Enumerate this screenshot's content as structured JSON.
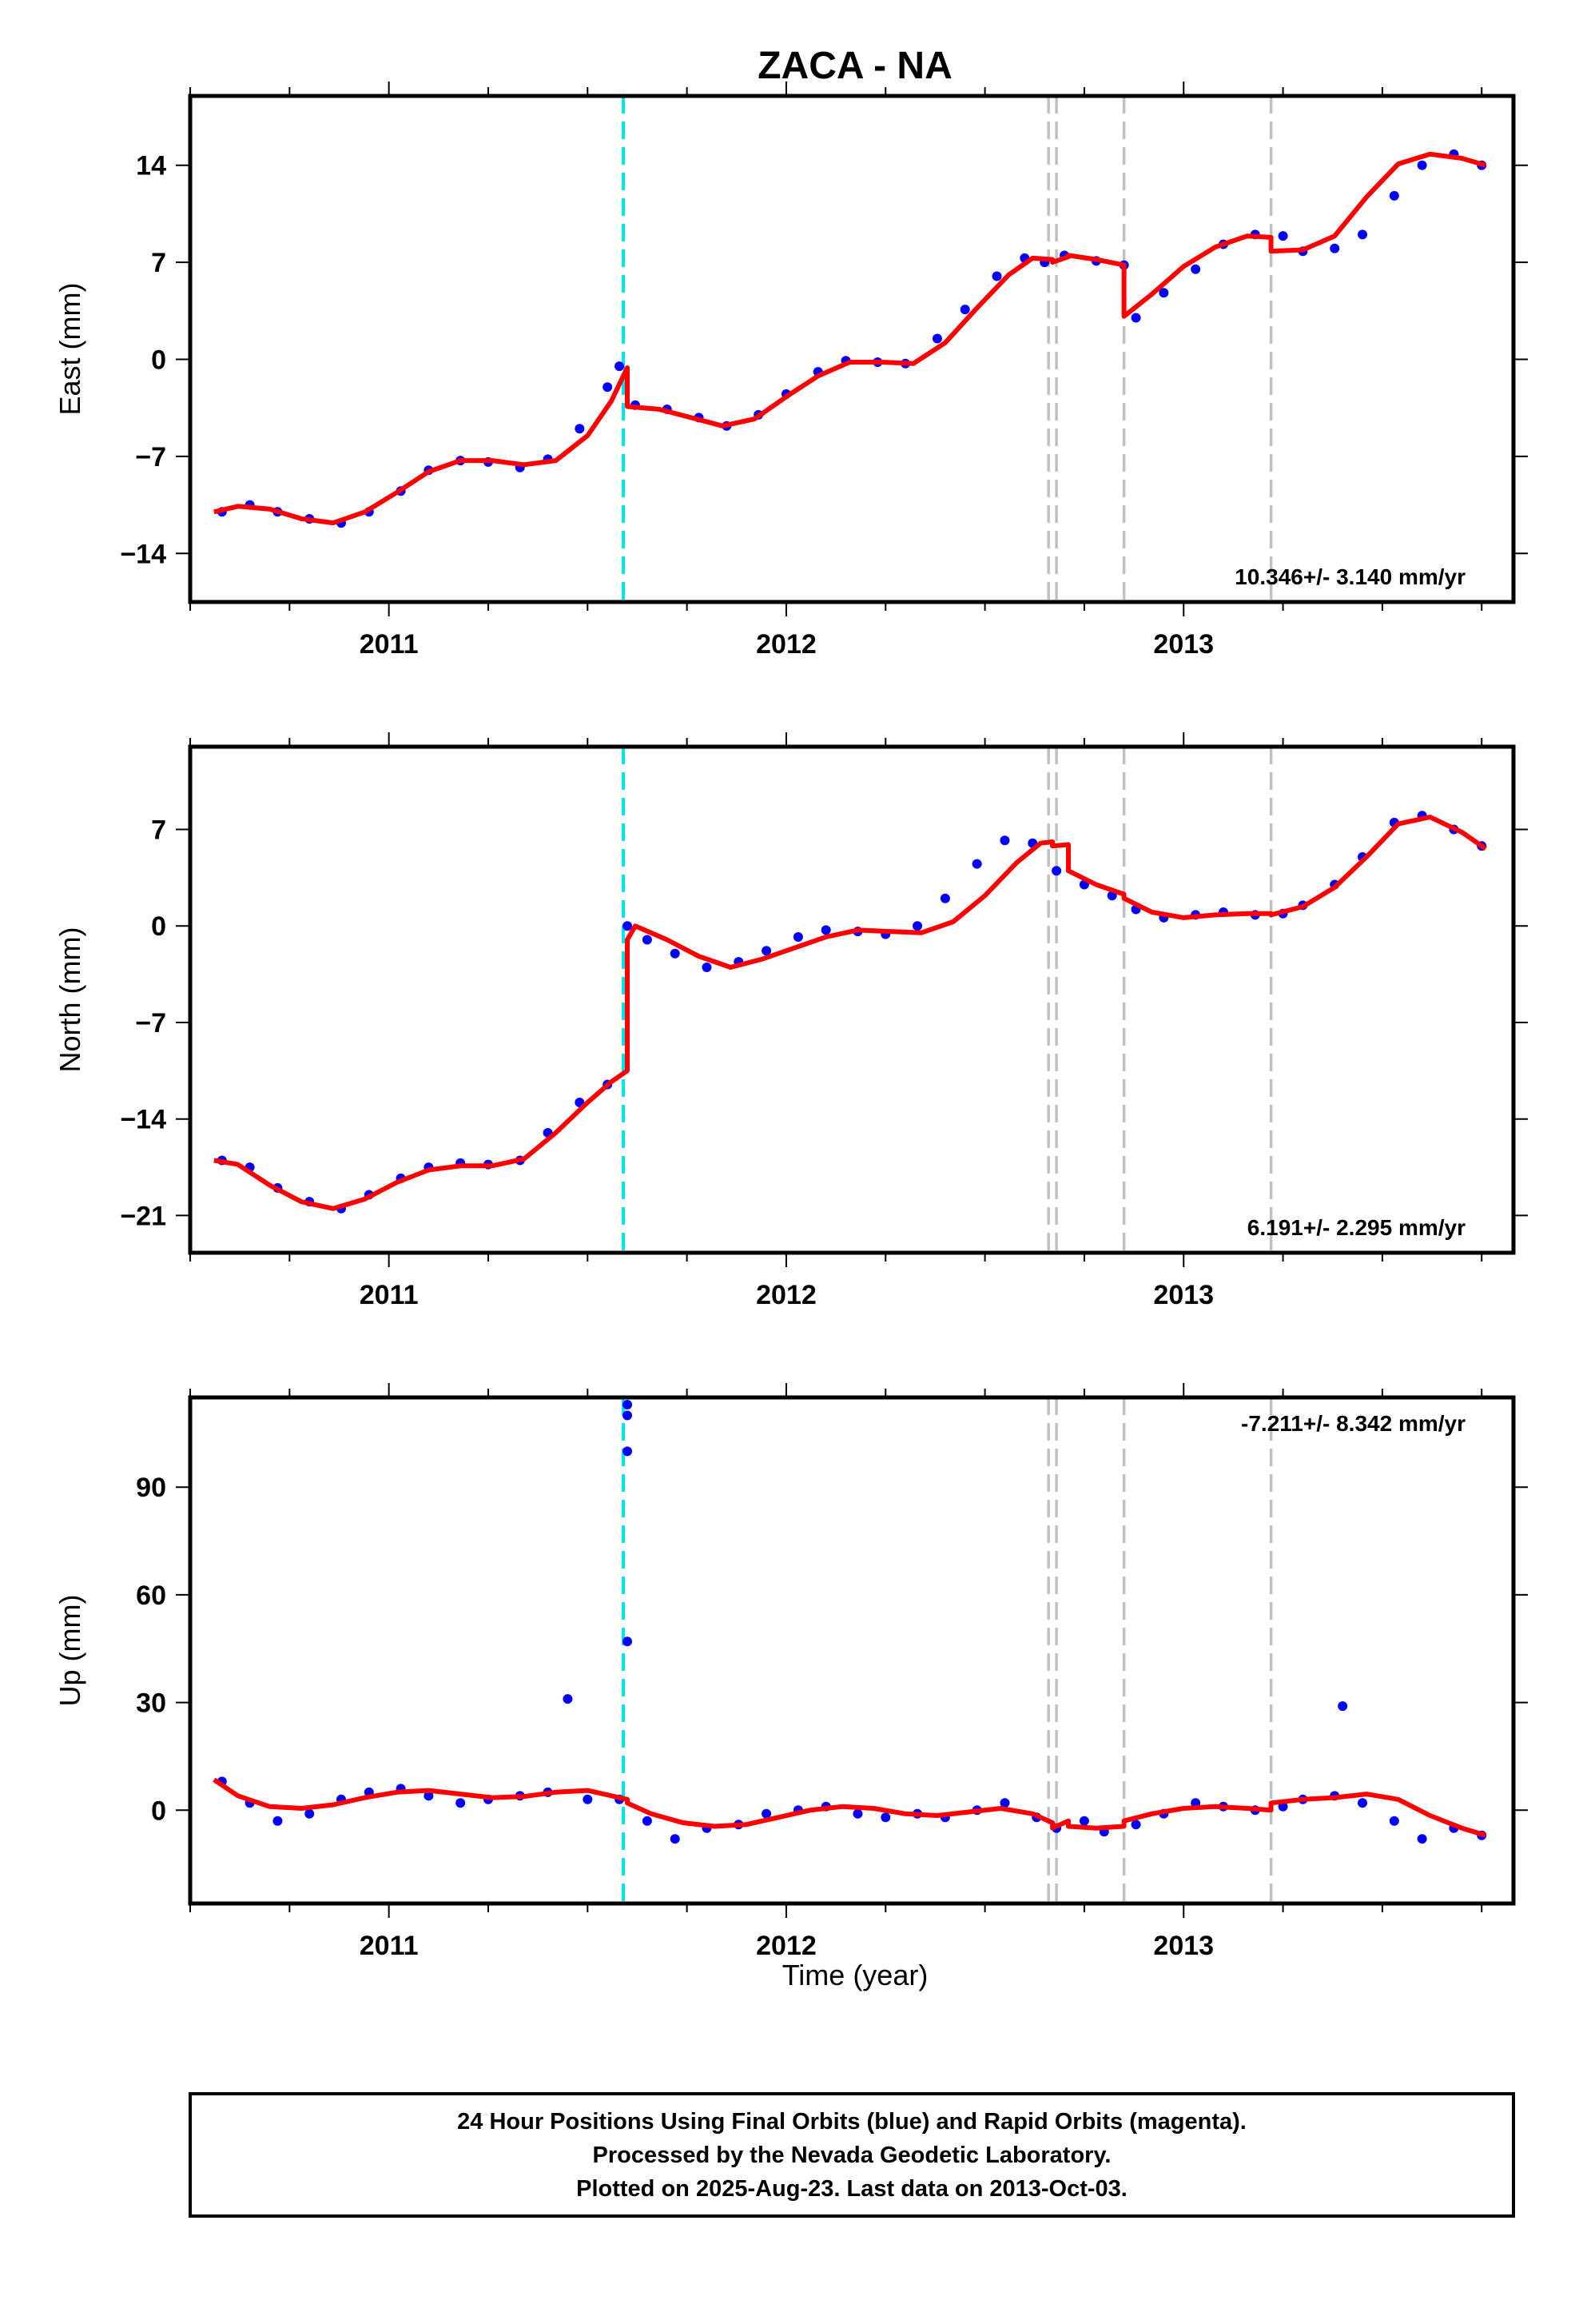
{
  "title": "ZACA - NA",
  "x_axis_label": "Time (year)",
  "footer": {
    "line1": "24 Hour Positions Using Final Orbits (blue) and Rapid Orbits (magenta).",
    "line2": "Processed by the Nevada Geodetic Laboratory.",
    "line3": "Plotted on 2025-Aug-23. Last data on 2013-Oct-03."
  },
  "colors": {
    "data_points": "#0000ff",
    "model_fit": "#ff0000",
    "equipment_change": "#00e5ee",
    "event": "#c0c0c0",
    "frame": "#000000"
  },
  "chart_data": [
    {
      "type": "scatter",
      "ylabel": "East (mm)",
      "xlim": [
        2010.5,
        2013.83
      ],
      "ylim": [
        -17.5,
        19
      ],
      "x_ticks": [
        2011,
        2012,
        2013
      ],
      "y_ticks": [
        -14,
        -7,
        0,
        7,
        14
      ],
      "velocity": "10.346+/- 3.140 mm/yr",
      "series": [
        {
          "kind": "points",
          "x": [
            2010.58,
            2010.65,
            2010.72,
            2010.8,
            2010.88,
            2010.95,
            2011.03,
            2011.1,
            2011.18,
            2011.25,
            2011.33,
            2011.4,
            2011.48,
            2011.55,
            2011.58,
            2011.62,
            2011.7,
            2011.78,
            2011.85,
            2011.93,
            2012.0,
            2012.08,
            2012.15,
            2012.23,
            2012.3,
            2012.38,
            2012.45,
            2012.53,
            2012.6,
            2012.65,
            2012.7,
            2012.78,
            2012.85,
            2012.88,
            2012.95,
            2013.03,
            2013.1,
            2013.18,
            2013.25,
            2013.3,
            2013.38,
            2013.45,
            2013.53,
            2013.6,
            2013.68,
            2013.75
          ],
          "y": [
            -11.0,
            -10.5,
            -11.0,
            -11.5,
            -11.8,
            -11.0,
            -9.5,
            -8.0,
            -7.3,
            -7.4,
            -7.8,
            -7.2,
            -5.0,
            -2.0,
            -0.5,
            -3.3,
            -3.6,
            -4.2,
            -4.8,
            -4.0,
            -2.5,
            -0.9,
            -0.1,
            -0.2,
            -0.3,
            1.5,
            3.6,
            6.0,
            7.3,
            7.0,
            7.5,
            7.1,
            6.8,
            3.0,
            4.8,
            6.5,
            8.3,
            9.0,
            8.9,
            7.8,
            8.0,
            9.0,
            11.8,
            14.0,
            14.8,
            14.0
          ]
        },
        {
          "kind": "model",
          "x": [
            2010.56,
            2010.62,
            2010.7,
            2010.78,
            2010.86,
            2010.94,
            2011.02,
            2011.1,
            2011.18,
            2011.26,
            2011.34,
            2011.42,
            2011.5,
            2011.56,
            2011.6,
            2011.6,
            2011.68,
            2011.76,
            2011.84,
            2011.92,
            2012.0,
            2012.08,
            2012.16,
            2012.24,
            2012.32,
            2012.4,
            2012.48,
            2012.56,
            2012.62,
            2012.67,
            2012.67,
            2012.71,
            2012.71,
            2012.78,
            2012.85,
            2012.85,
            2012.92,
            2013.0,
            2013.08,
            2013.16,
            2013.22,
            2013.22,
            2013.3,
            2013.38,
            2013.46,
            2013.54,
            2013.62,
            2013.7,
            2013.76
          ],
          "y": [
            -11.0,
            -10.6,
            -10.8,
            -11.5,
            -11.8,
            -11.0,
            -9.6,
            -8.1,
            -7.3,
            -7.3,
            -7.6,
            -7.3,
            -5.5,
            -3.0,
            -0.6,
            -3.4,
            -3.6,
            -4.2,
            -4.8,
            -4.3,
            -2.7,
            -1.2,
            -0.2,
            -0.2,
            -0.3,
            1.2,
            3.7,
            6.1,
            7.3,
            7.2,
            7.0,
            7.4,
            7.5,
            7.2,
            6.8,
            3.1,
            4.7,
            6.7,
            8.1,
            8.9,
            8.8,
            7.8,
            7.9,
            8.9,
            11.7,
            14.1,
            14.8,
            14.5,
            14.0
          ]
        }
      ]
    },
    {
      "type": "scatter",
      "ylabel": "North (mm)",
      "xlim": [
        2010.5,
        2013.83
      ],
      "ylim": [
        -23.7,
        13
      ],
      "x_ticks": [
        2011,
        2012,
        2013
      ],
      "y_ticks": [
        -21,
        -14,
        -7,
        0,
        7
      ],
      "velocity": "6.191+/- 2.295 mm/yr",
      "series": [
        {
          "kind": "points",
          "x": [
            2010.58,
            2010.65,
            2010.72,
            2010.8,
            2010.88,
            2010.95,
            2011.03,
            2011.1,
            2011.18,
            2011.25,
            2011.33,
            2011.4,
            2011.48,
            2011.55,
            2011.6,
            2011.65,
            2011.72,
            2011.8,
            2011.88,
            2011.95,
            2012.03,
            2012.1,
            2012.18,
            2012.25,
            2012.33,
            2012.4,
            2012.48,
            2012.55,
            2012.62,
            2012.68,
            2012.75,
            2012.82,
            2012.88,
            2012.95,
            2013.03,
            2013.1,
            2013.18,
            2013.25,
            2013.3,
            2013.38,
            2013.45,
            2013.53,
            2013.6,
            2013.68,
            2013.75
          ],
          "y": [
            -17.0,
            -17.5,
            -19.0,
            -20.0,
            -20.5,
            -19.5,
            -18.3,
            -17.5,
            -17.2,
            -17.3,
            -17.0,
            -15.0,
            -12.8,
            -11.5,
            0.0,
            -1.0,
            -2.0,
            -3.0,
            -2.6,
            -1.8,
            -0.8,
            -0.3,
            -0.4,
            -0.6,
            0.0,
            2.0,
            4.5,
            6.2,
            6.0,
            4.0,
            3.0,
            2.2,
            1.2,
            0.6,
            0.8,
            1.0,
            0.8,
            0.9,
            1.5,
            3.0,
            5.0,
            7.5,
            8.0,
            7.0,
            5.8
          ]
        },
        {
          "kind": "model",
          "x": [
            2010.56,
            2010.62,
            2010.7,
            2010.78,
            2010.86,
            2010.94,
            2011.02,
            2011.1,
            2011.18,
            2011.26,
            2011.34,
            2011.42,
            2011.5,
            2011.56,
            2011.6,
            2011.6,
            2011.62,
            2011.7,
            2011.78,
            2011.86,
            2011.94,
            2012.02,
            2012.1,
            2012.18,
            2012.26,
            2012.34,
            2012.42,
            2012.5,
            2012.58,
            2012.64,
            2012.67,
            2012.67,
            2012.71,
            2012.71,
            2012.78,
            2012.85,
            2012.85,
            2012.92,
            2013.0,
            2013.08,
            2013.16,
            2013.22,
            2013.22,
            2013.3,
            2013.38,
            2013.46,
            2013.54,
            2013.62,
            2013.7,
            2013.76
          ],
          "y": [
            -17.0,
            -17.3,
            -18.8,
            -20.0,
            -20.5,
            -19.8,
            -18.6,
            -17.7,
            -17.4,
            -17.4,
            -16.9,
            -15.0,
            -12.8,
            -11.3,
            -10.5,
            -1.0,
            0.0,
            -1.0,
            -2.2,
            -3.0,
            -2.4,
            -1.6,
            -0.8,
            -0.3,
            -0.4,
            -0.5,
            0.3,
            2.2,
            4.6,
            6.0,
            6.1,
            5.8,
            5.9,
            4.0,
            3.0,
            2.3,
            2.0,
            1.0,
            0.6,
            0.8,
            0.9,
            0.9,
            0.8,
            1.4,
            2.8,
            5.0,
            7.4,
            7.9,
            6.8,
            5.6
          ]
        }
      ]
    },
    {
      "type": "scatter",
      "ylabel": "Up (mm)",
      "xlim": [
        2010.5,
        2013.83
      ],
      "ylim": [
        -26,
        115
      ],
      "x_ticks": [
        2011,
        2012,
        2013
      ],
      "y_ticks": [
        0,
        30,
        60,
        90
      ],
      "velocity": "-7.211+/- 8.342 mm/yr",
      "series": [
        {
          "kind": "points",
          "x": [
            2010.58,
            2010.65,
            2010.72,
            2010.8,
            2010.88,
            2010.95,
            2011.03,
            2011.1,
            2011.18,
            2011.25,
            2011.33,
            2011.4,
            2011.45,
            2011.5,
            2011.58,
            2011.6,
            2011.6,
            2011.6,
            2011.6,
            2011.65,
            2011.72,
            2011.8,
            2011.88,
            2011.95,
            2012.03,
            2012.1,
            2012.18,
            2012.25,
            2012.33,
            2012.4,
            2012.48,
            2012.55,
            2012.63,
            2012.68,
            2012.75,
            2012.8,
            2012.88,
            2012.95,
            2013.03,
            2013.1,
            2013.18,
            2013.25,
            2013.3,
            2013.38,
            2013.4,
            2013.45,
            2013.53,
            2013.6,
            2013.68,
            2013.75
          ],
          "y": [
            8.0,
            2.0,
            -3.0,
            -1.0,
            3.0,
            5.0,
            6.0,
            4.0,
            2.0,
            3.0,
            4.0,
            5.0,
            31.0,
            3.0,
            3.0,
            47.0,
            100.0,
            110.0,
            113.0,
            -3.0,
            -8.0,
            -5.0,
            -4.0,
            -1.0,
            0.0,
            1.0,
            -1.0,
            -2.0,
            -1.0,
            -2.0,
            0.0,
            2.0,
            -2.0,
            -5.0,
            -3.0,
            -6.0,
            -4.0,
            -1.0,
            2.0,
            1.0,
            0.0,
            1.0,
            3.0,
            4.0,
            29.0,
            2.0,
            -3.0,
            -8.0,
            -5.0,
            -7.0
          ]
        },
        {
          "kind": "model",
          "x": [
            2010.56,
            2010.62,
            2010.7,
            2010.78,
            2010.86,
            2010.94,
            2011.02,
            2011.1,
            2011.18,
            2011.26,
            2011.34,
            2011.42,
            2011.5,
            2011.56,
            2011.6,
            2011.6,
            2011.66,
            2011.74,
            2011.82,
            2011.9,
            2011.98,
            2012.06,
            2012.14,
            2012.22,
            2012.3,
            2012.38,
            2012.46,
            2012.54,
            2012.62,
            2012.67,
            2012.67,
            2012.71,
            2012.71,
            2012.78,
            2012.85,
            2012.85,
            2012.92,
            2013.0,
            2013.08,
            2013.16,
            2013.22,
            2013.22,
            2013.3,
            2013.38,
            2013.46,
            2013.54,
            2013.62,
            2013.7,
            2013.76
          ],
          "y": [
            8.5,
            4.0,
            1.0,
            0.5,
            1.5,
            3.5,
            5.0,
            5.5,
            4.5,
            3.5,
            3.8,
            5.0,
            5.5,
            4.0,
            3.0,
            2.0,
            -1.0,
            -3.5,
            -4.5,
            -4.0,
            -2.0,
            0.0,
            1.0,
            0.5,
            -1.0,
            -1.5,
            -0.5,
            0.5,
            -1.0,
            -3.5,
            -5.0,
            -3.0,
            -4.5,
            -5.0,
            -4.5,
            -3.0,
            -1.0,
            0.5,
            1.0,
            0.5,
            0.0,
            2.0,
            3.0,
            3.5,
            4.5,
            3.0,
            -1.5,
            -5.0,
            -7.0
          ]
        }
      ]
    }
  ],
  "event_lines": [
    {
      "x": 2011.59,
      "kind": "equipment_change"
    },
    {
      "x": 2012.66,
      "kind": "event"
    },
    {
      "x": 2012.68,
      "kind": "event"
    },
    {
      "x": 2012.85,
      "kind": "event"
    },
    {
      "x": 2013.22,
      "kind": "event"
    }
  ]
}
